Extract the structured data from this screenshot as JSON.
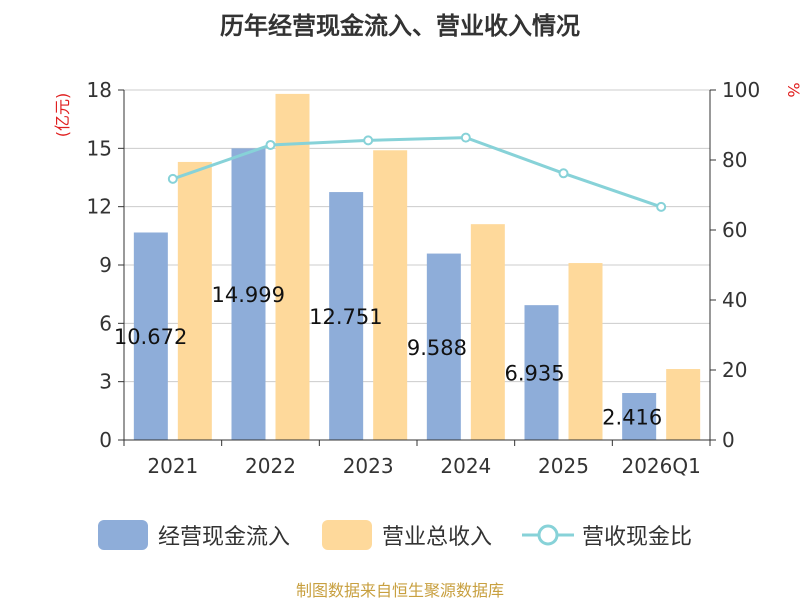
{
  "chart_data": {
    "type": "bar",
    "title": "历年经营现金流入、营业收入情况",
    "categories": [
      "2021",
      "2022",
      "2023",
      "2024",
      "2025",
      "2026Q1"
    ],
    "series": [
      {
        "name": "经营现金流入",
        "type": "bar",
        "axis": "left",
        "color": "#8eadd9",
        "values": [
          10.672,
          14.999,
          12.751,
          9.588,
          6.935,
          2.416
        ],
        "labels": [
          "10.672",
          "14.999",
          "12.751",
          "9.588",
          "6.935",
          "2.416"
        ]
      },
      {
        "name": "营业总收入",
        "type": "bar",
        "axis": "left",
        "color": "#fed99b",
        "values": [
          14.3,
          17.8,
          14.9,
          11.1,
          9.1,
          3.65
        ]
      },
      {
        "name": "营收现金比",
        "type": "line",
        "axis": "right",
        "color": "#87d2d8",
        "values": [
          74.6,
          84.3,
          85.6,
          86.4,
          76.2,
          66.6
        ]
      }
    ],
    "y_left": {
      "unit": "(亿元)",
      "ylim": [
        0,
        18
      ],
      "ticks": [
        "0",
        "3",
        "6",
        "9",
        "12",
        "15",
        "18"
      ]
    },
    "y_right": {
      "unit": "%",
      "ylim": [
        0,
        100
      ],
      "ticks": [
        "0",
        "20",
        "40",
        "60",
        "80",
        "100"
      ]
    },
    "legend_position": "bottom"
  },
  "legend": {
    "items": [
      "经营现金流入",
      "营业总收入",
      "营收现金比"
    ]
  },
  "source": "制图数据来自恒生聚源数据库"
}
